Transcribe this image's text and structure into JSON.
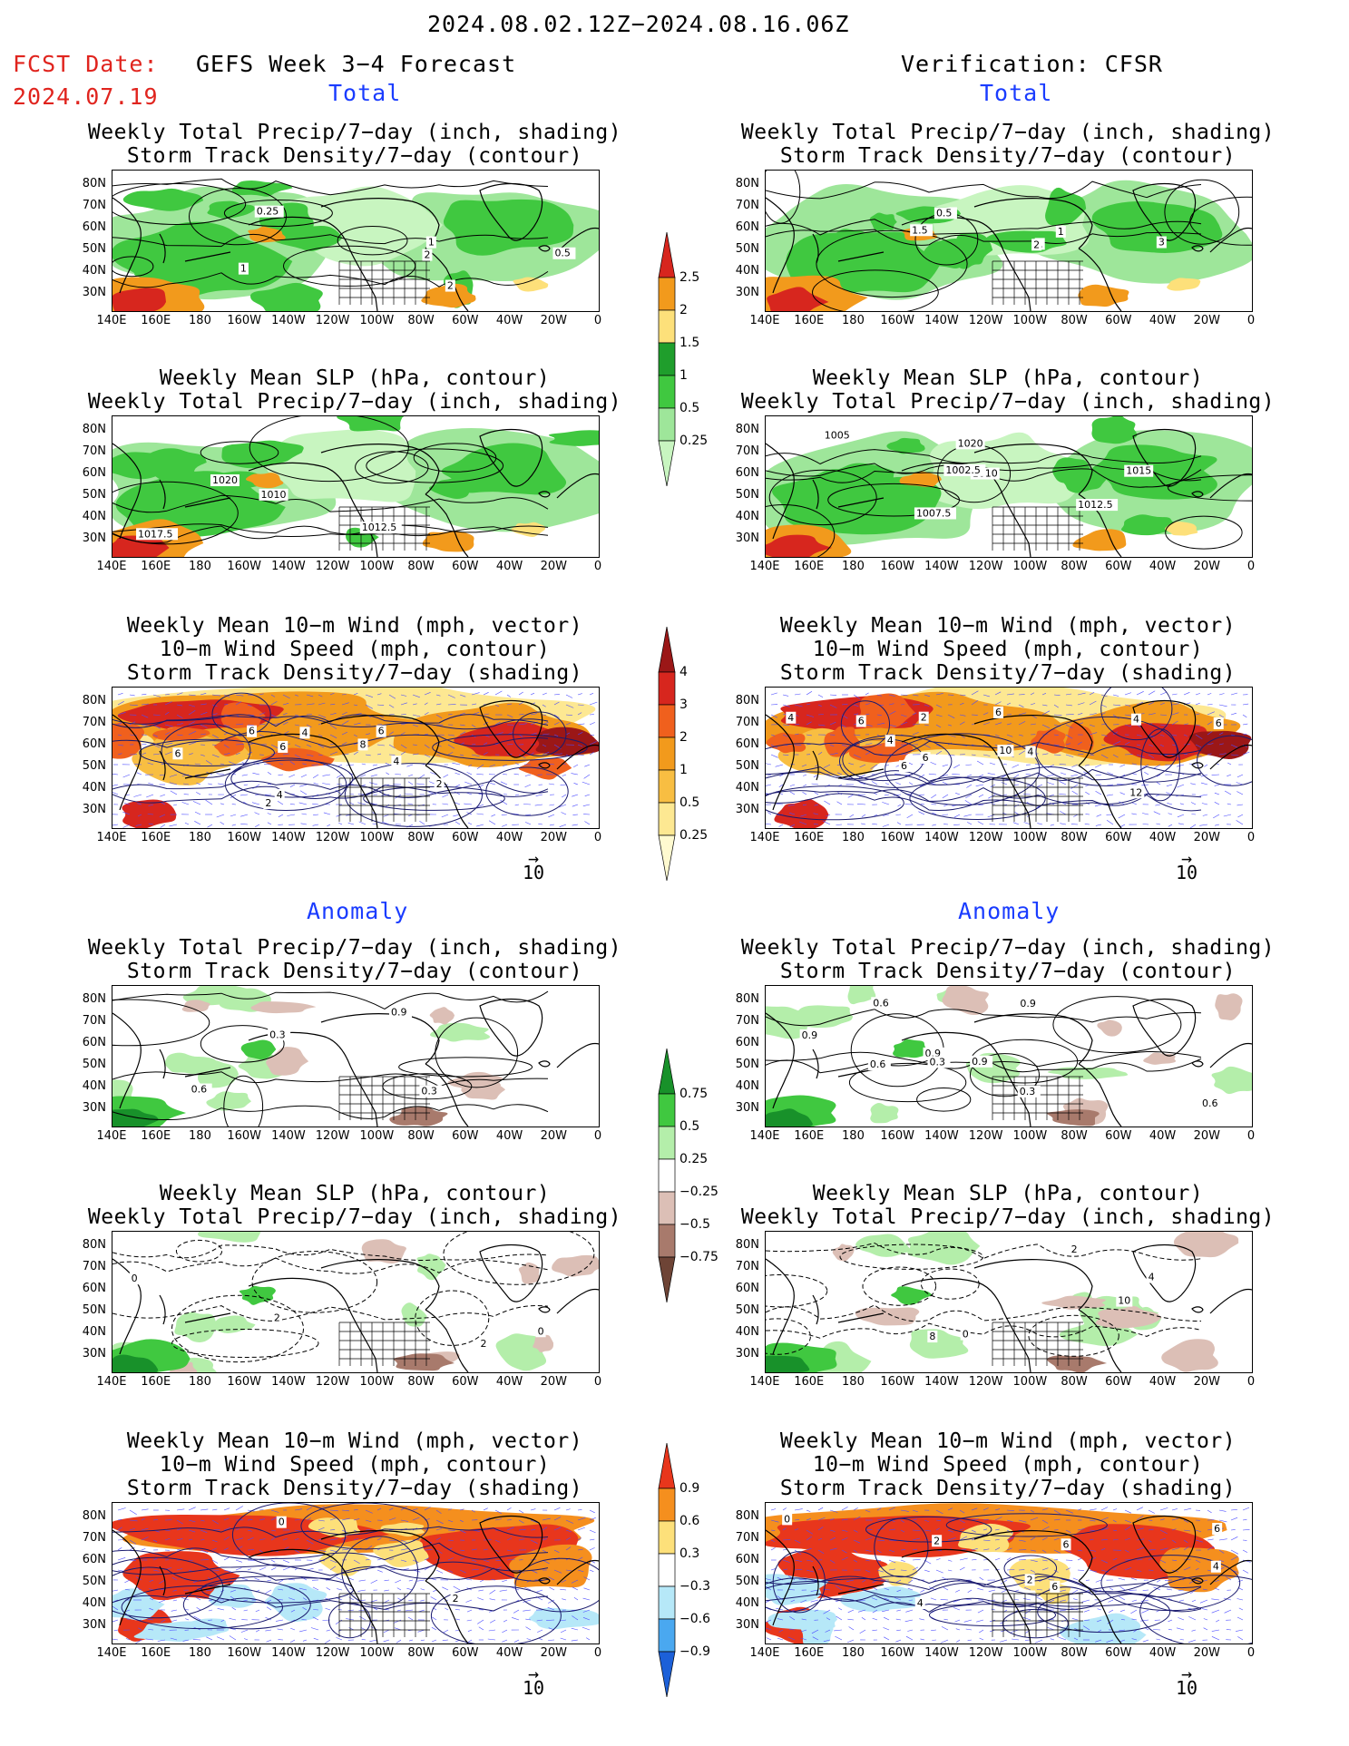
{
  "header": {
    "date_range": "2024.08.02.12Z−2024.08.16.06Z",
    "fcst_label": "FCST Date:",
    "fcst_date": "2024.07.19",
    "model_title": "GEFS Week 3−4 Forecast",
    "verification_title": "Verification: CFSR"
  },
  "sections": {
    "total": "Total",
    "anomaly": "Anomaly"
  },
  "panel_titles": {
    "precip_storm": [
      "Weekly Total Precip/7−day (inch, shading)",
      "Storm Track Density/7−day (contour)"
    ],
    "slp_precip": [
      "Weekly Mean SLP (hPa, contour)",
      "Weekly Total Precip/7−day (inch, shading)"
    ],
    "wind_storm": [
      "Weekly Mean 10−m Wind (mph, vector)",
      "10−m Wind Speed (mph, contour)",
      "Storm Track Density/7−day (shading)"
    ]
  },
  "axes": {
    "lat_labels": [
      "80N",
      "70N",
      "60N",
      "50N",
      "40N",
      "30N"
    ],
    "lon_labels": [
      "140E",
      "160E",
      "180",
      "160W",
      "140W",
      "120W",
      "100W",
      "80W",
      "60W",
      "40W",
      "20W",
      "0"
    ]
  },
  "vector_ref": "10",
  "colorbars": {
    "precip_total": {
      "labels": [
        "2.5",
        "2",
        "1.5",
        "1",
        "0.5",
        "0.25"
      ],
      "colors": [
        "#d7261e",
        "#f29a1c",
        "#fde07a",
        "#1f9e2c",
        "#40c840",
        "#9ee69a",
        "#c8f5c0"
      ]
    },
    "storm_total": {
      "labels": [
        "4",
        "3",
        "2",
        "1",
        "0.5",
        "0.25"
      ],
      "colors": [
        "#9b1717",
        "#d7261e",
        "#f0601d",
        "#f29a1c",
        "#f8be42",
        "#fde892",
        "#fffad0"
      ]
    },
    "precip_anom": {
      "labels": [
        "0.75",
        "0.5",
        "0.25",
        "−0.25",
        "−0.5",
        "−0.75"
      ],
      "colors": [
        "#18912a",
        "#40c840",
        "#b4eeaa",
        "#ffffff",
        "#dcbfb6",
        "#a87a6c",
        "#6e4436"
      ]
    },
    "storm_anom": {
      "labels": [
        "0.9",
        "0.6",
        "0.3",
        "−0.3",
        "−0.6",
        "−0.9"
      ],
      "colors": [
        "#e8361c",
        "#f58f1e",
        "#fde07a",
        "#ffffff",
        "#b6e8f8",
        "#4aa8f0",
        "#1c60d8"
      ]
    }
  },
  "contour_labels": {
    "p1": [
      "0.25",
      "2",
      "1",
      "0.5",
      "1",
      "2"
    ],
    "p2": [
      "1.5",
      "1",
      "0.5",
      "1",
      "3",
      "2"
    ],
    "p3": [
      "1010",
      "1012.5",
      "1017.5",
      "1020"
    ],
    "p4": [
      "1007.5",
      "1010",
      "1012.5",
      "1015",
      "1005",
      "1002.5",
      "1020"
    ],
    "p5": [
      "2",
      "4",
      "6",
      "4",
      "2",
      "6",
      "6",
      "8",
      "6",
      "4"
    ],
    "p6": [
      "2",
      "4",
      "4",
      "6",
      "6",
      "6",
      "12",
      "10",
      "4",
      "6",
      "6",
      "4"
    ],
    "p7": [
      "0.3",
      "0.6",
      "0.3",
      "0.9"
    ],
    "p8": [
      "0.9",
      "0.9",
      "0.3",
      "0.6",
      "0.9",
      "0.6",
      "0.6",
      "0.9",
      "0.3"
    ],
    "p9": [
      "2",
      "0",
      "0",
      "2"
    ],
    "p10": [
      "8",
      "4",
      "2",
      "0",
      "10"
    ],
    "p11": [
      "0",
      "2"
    ],
    "p12": [
      "2",
      "6",
      "4",
      "6",
      "0",
      "2",
      "6",
      "4"
    ]
  }
}
